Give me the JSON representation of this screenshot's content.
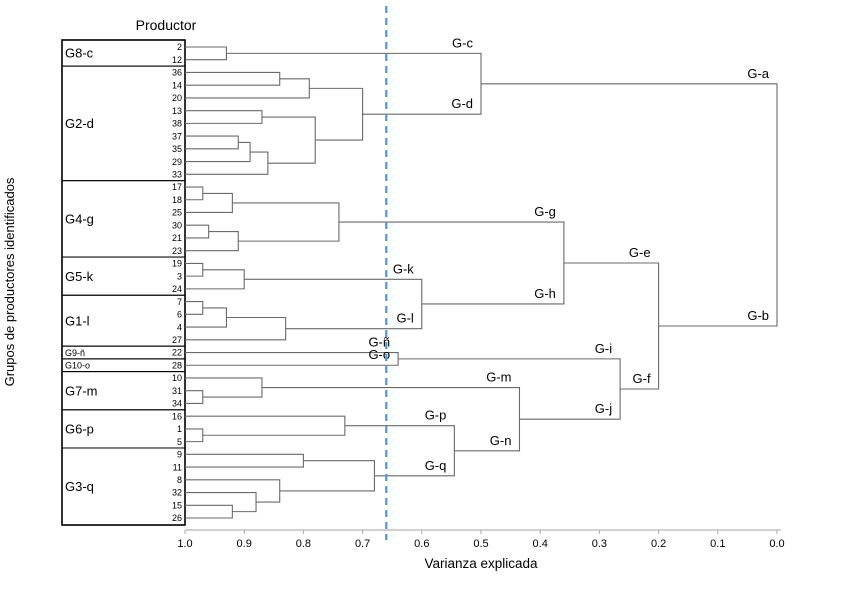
{
  "chart_data": {
    "type": "dendrogram",
    "column_header": "Productor",
    "xlabel": "Varianza explicada",
    "ylabel": "Grupos de productores identificados",
    "x_range": [
      1.0,
      0.0
    ],
    "x_ticks": [
      "1.0",
      "0.9",
      "0.8",
      "0.7",
      "0.6",
      "0.5",
      "0.4",
      "0.3",
      "0.2",
      "0.1",
      "0.0"
    ],
    "cut_line": {
      "value": 0.66,
      "color": "#4f97d8",
      "style": "dashed"
    },
    "colors": {
      "line": "#6a6a6a",
      "box": "#000000",
      "axis": "#b5b5b5",
      "text": "#000000"
    },
    "groups": [
      {
        "name": "G8-c",
        "leaves": [
          "2",
          "12"
        ]
      },
      {
        "name": "G2-d",
        "leaves": [
          "36",
          "14",
          "20",
          "13",
          "38",
          "37",
          "35",
          "29",
          "33"
        ]
      },
      {
        "name": "G4-g",
        "leaves": [
          "17",
          "18",
          "25",
          "30",
          "21",
          "23"
        ]
      },
      {
        "name": "G5-k",
        "leaves": [
          "19",
          "3",
          "24"
        ]
      },
      {
        "name": "G1-l",
        "leaves": [
          "7",
          "6",
          "4",
          "27"
        ]
      },
      {
        "name": "G9-ñ",
        "leaves": [
          "22"
        ]
      },
      {
        "name": "G10-o",
        "leaves": [
          "28"
        ]
      },
      {
        "name": "G7-m",
        "leaves": [
          "10",
          "31",
          "34"
        ]
      },
      {
        "name": "G6-p",
        "leaves": [
          "16",
          "1",
          "5"
        ]
      },
      {
        "name": "G3-q",
        "leaves": [
          "9",
          "11",
          "8",
          "32",
          "15",
          "26"
        ]
      }
    ],
    "leaf_line_labels": {
      "22": "G-ñ",
      "28": "G-o"
    },
    "merges": [
      {
        "id": "c",
        "a": "2",
        "b": "12",
        "h": 0.93,
        "label": "G-c"
      },
      {
        "id": "d1",
        "a": "36",
        "b": "14",
        "h": 0.84
      },
      {
        "id": "d2",
        "a": "d1",
        "b": "20",
        "h": 0.79
      },
      {
        "id": "d3",
        "a": "13",
        "b": "38",
        "h": 0.87
      },
      {
        "id": "d4",
        "a": "37",
        "b": "35",
        "h": 0.91
      },
      {
        "id": "d5",
        "a": "d4",
        "b": "29",
        "h": 0.89
      },
      {
        "id": "d6",
        "a": "d5",
        "b": "33",
        "h": 0.86
      },
      {
        "id": "d7",
        "a": "d3",
        "b": "d6",
        "h": 0.78
      },
      {
        "id": "d",
        "a": "d2",
        "b": "d7",
        "h": 0.7,
        "label": "G-d"
      },
      {
        "id": "a",
        "a": "c",
        "b": "d",
        "h": 0.5,
        "label": "G-a"
      },
      {
        "id": "g1",
        "a": "17",
        "b": "18",
        "h": 0.97
      },
      {
        "id": "g2",
        "a": "g1",
        "b": "25",
        "h": 0.92
      },
      {
        "id": "g3",
        "a": "30",
        "b": "21",
        "h": 0.96
      },
      {
        "id": "g4",
        "a": "g3",
        "b": "23",
        "h": 0.91
      },
      {
        "id": "g",
        "a": "g2",
        "b": "g4",
        "h": 0.74,
        "label": "G-g"
      },
      {
        "id": "k1",
        "a": "19",
        "b": "3",
        "h": 0.97
      },
      {
        "id": "k",
        "a": "k1",
        "b": "24",
        "h": 0.9,
        "label": "G-k"
      },
      {
        "id": "l1",
        "a": "7",
        "b": "6",
        "h": 0.97
      },
      {
        "id": "l2",
        "a": "l1",
        "b": "4",
        "h": 0.93
      },
      {
        "id": "l",
        "a": "l2",
        "b": "27",
        "h": 0.83,
        "label": "G-l"
      },
      {
        "id": "h",
        "a": "k",
        "b": "l",
        "h": 0.6,
        "label": "G-h"
      },
      {
        "id": "e",
        "a": "g",
        "b": "h",
        "h": 0.36,
        "label": "G-e"
      },
      {
        "id": "i",
        "a": "22",
        "b": "28",
        "h": 0.64,
        "label": "G-i"
      },
      {
        "id": "m1",
        "a": "31",
        "b": "34",
        "h": 0.97
      },
      {
        "id": "m",
        "a": "10",
        "b": "m1",
        "h": 0.87,
        "label": "G-m"
      },
      {
        "id": "p1",
        "a": "1",
        "b": "5",
        "h": 0.97
      },
      {
        "id": "p",
        "a": "16",
        "b": "p1",
        "h": 0.73,
        "label": "G-p"
      },
      {
        "id": "q1",
        "a": "15",
        "b": "26",
        "h": 0.92
      },
      {
        "id": "q2",
        "a": "32",
        "b": "q1",
        "h": 0.88
      },
      {
        "id": "q3",
        "a": "8",
        "b": "q2",
        "h": 0.84
      },
      {
        "id": "q4",
        "a": "9",
        "b": "11",
        "h": 0.8
      },
      {
        "id": "q",
        "a": "q4",
        "b": "q3",
        "h": 0.68,
        "label": "G-q"
      },
      {
        "id": "n",
        "a": "p",
        "b": "q",
        "h": 0.545,
        "label": "G-n"
      },
      {
        "id": "j",
        "a": "m",
        "b": "n",
        "h": 0.435,
        "label": "G-j"
      },
      {
        "id": "f",
        "a": "i",
        "b": "j",
        "h": 0.265,
        "label": "G-f"
      },
      {
        "id": "b",
        "a": "e",
        "b": "f",
        "h": 0.2,
        "label": "G-b"
      },
      {
        "id": "root",
        "a": "a",
        "b": "b",
        "h": 0.0
      }
    ]
  }
}
